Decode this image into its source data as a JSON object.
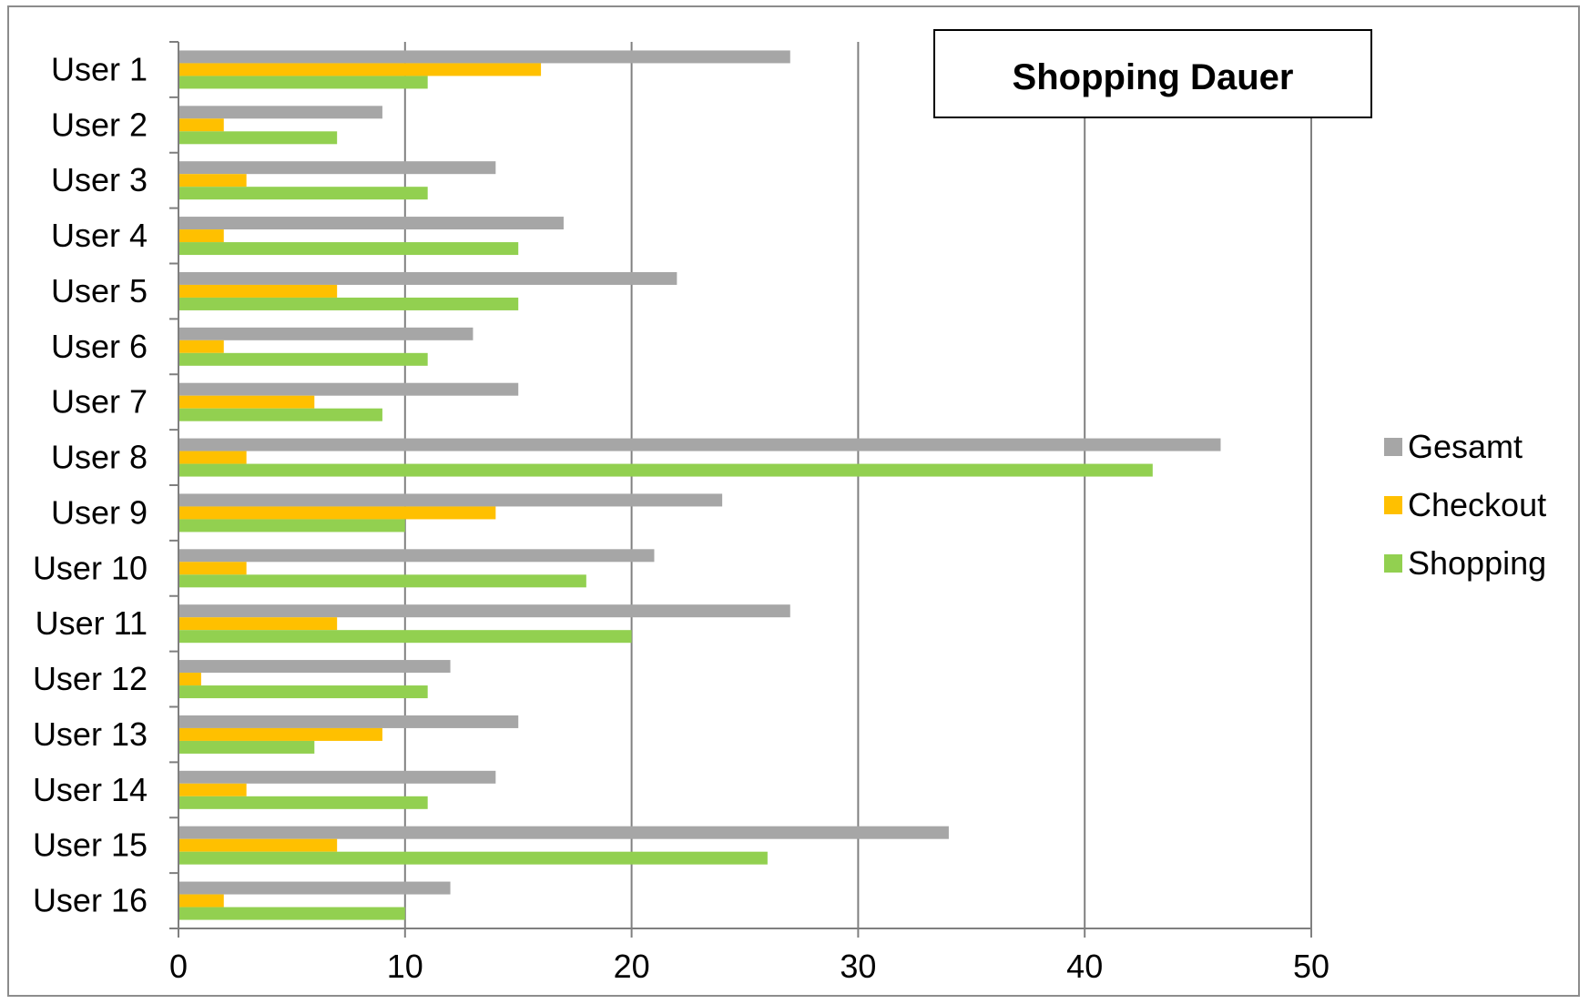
{
  "chart_data": {
    "type": "bar",
    "orientation": "horizontal",
    "title": "Shopping Dauer",
    "xlabel": "",
    "ylabel": "",
    "xlim": [
      0,
      50
    ],
    "xticks": [
      0,
      10,
      20,
      30,
      40,
      50
    ],
    "grid": "vertical",
    "legend_position": "right",
    "categories": [
      "User 1",
      "User 2",
      "User 3",
      "User 4",
      "User 5",
      "User 6",
      "User 7",
      "User 8",
      "User 9",
      "User 10",
      "User 11",
      "User 12",
      "User 13",
      "User 14",
      "User 15",
      "User 16"
    ],
    "series": [
      {
        "name": "Gesamt",
        "color": "#a6a6a6",
        "values": [
          27,
          9,
          14,
          17,
          22,
          13,
          15,
          46,
          24,
          21,
          27,
          12,
          15,
          14,
          34,
          12
        ]
      },
      {
        "name": "Checkout",
        "color": "#ffc000",
        "values": [
          16,
          2,
          3,
          2,
          7,
          2,
          6,
          3,
          14,
          3,
          7,
          1,
          9,
          3,
          7,
          2
        ]
      },
      {
        "name": "Shopping",
        "color": "#92d050",
        "values": [
          11,
          7,
          11,
          15,
          15,
          11,
          9,
          43,
          10,
          18,
          20,
          11,
          6,
          11,
          26,
          10
        ]
      }
    ]
  }
}
